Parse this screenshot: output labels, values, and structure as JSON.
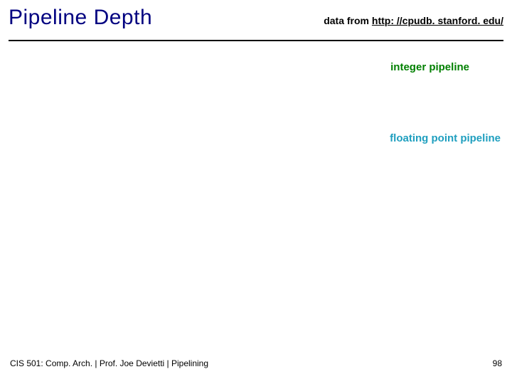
{
  "header": {
    "title": "Pipeline Depth",
    "source_prefix": "data from ",
    "source_url": "http: //cpudb. stanford. edu/"
  },
  "legend": {
    "integer": {
      "label": "integer pipeline",
      "color": "#008000"
    },
    "fp": {
      "label": "floating point pipeline",
      "color": "#1f9fbf"
    }
  },
  "footer": {
    "left": "CIS 501: Comp. Arch.  |  Prof. Joe Devietti  |  Pipelining",
    "page": "98"
  },
  "colors": {
    "title": "#000080",
    "rule": "#000000",
    "background": "#ffffff"
  }
}
